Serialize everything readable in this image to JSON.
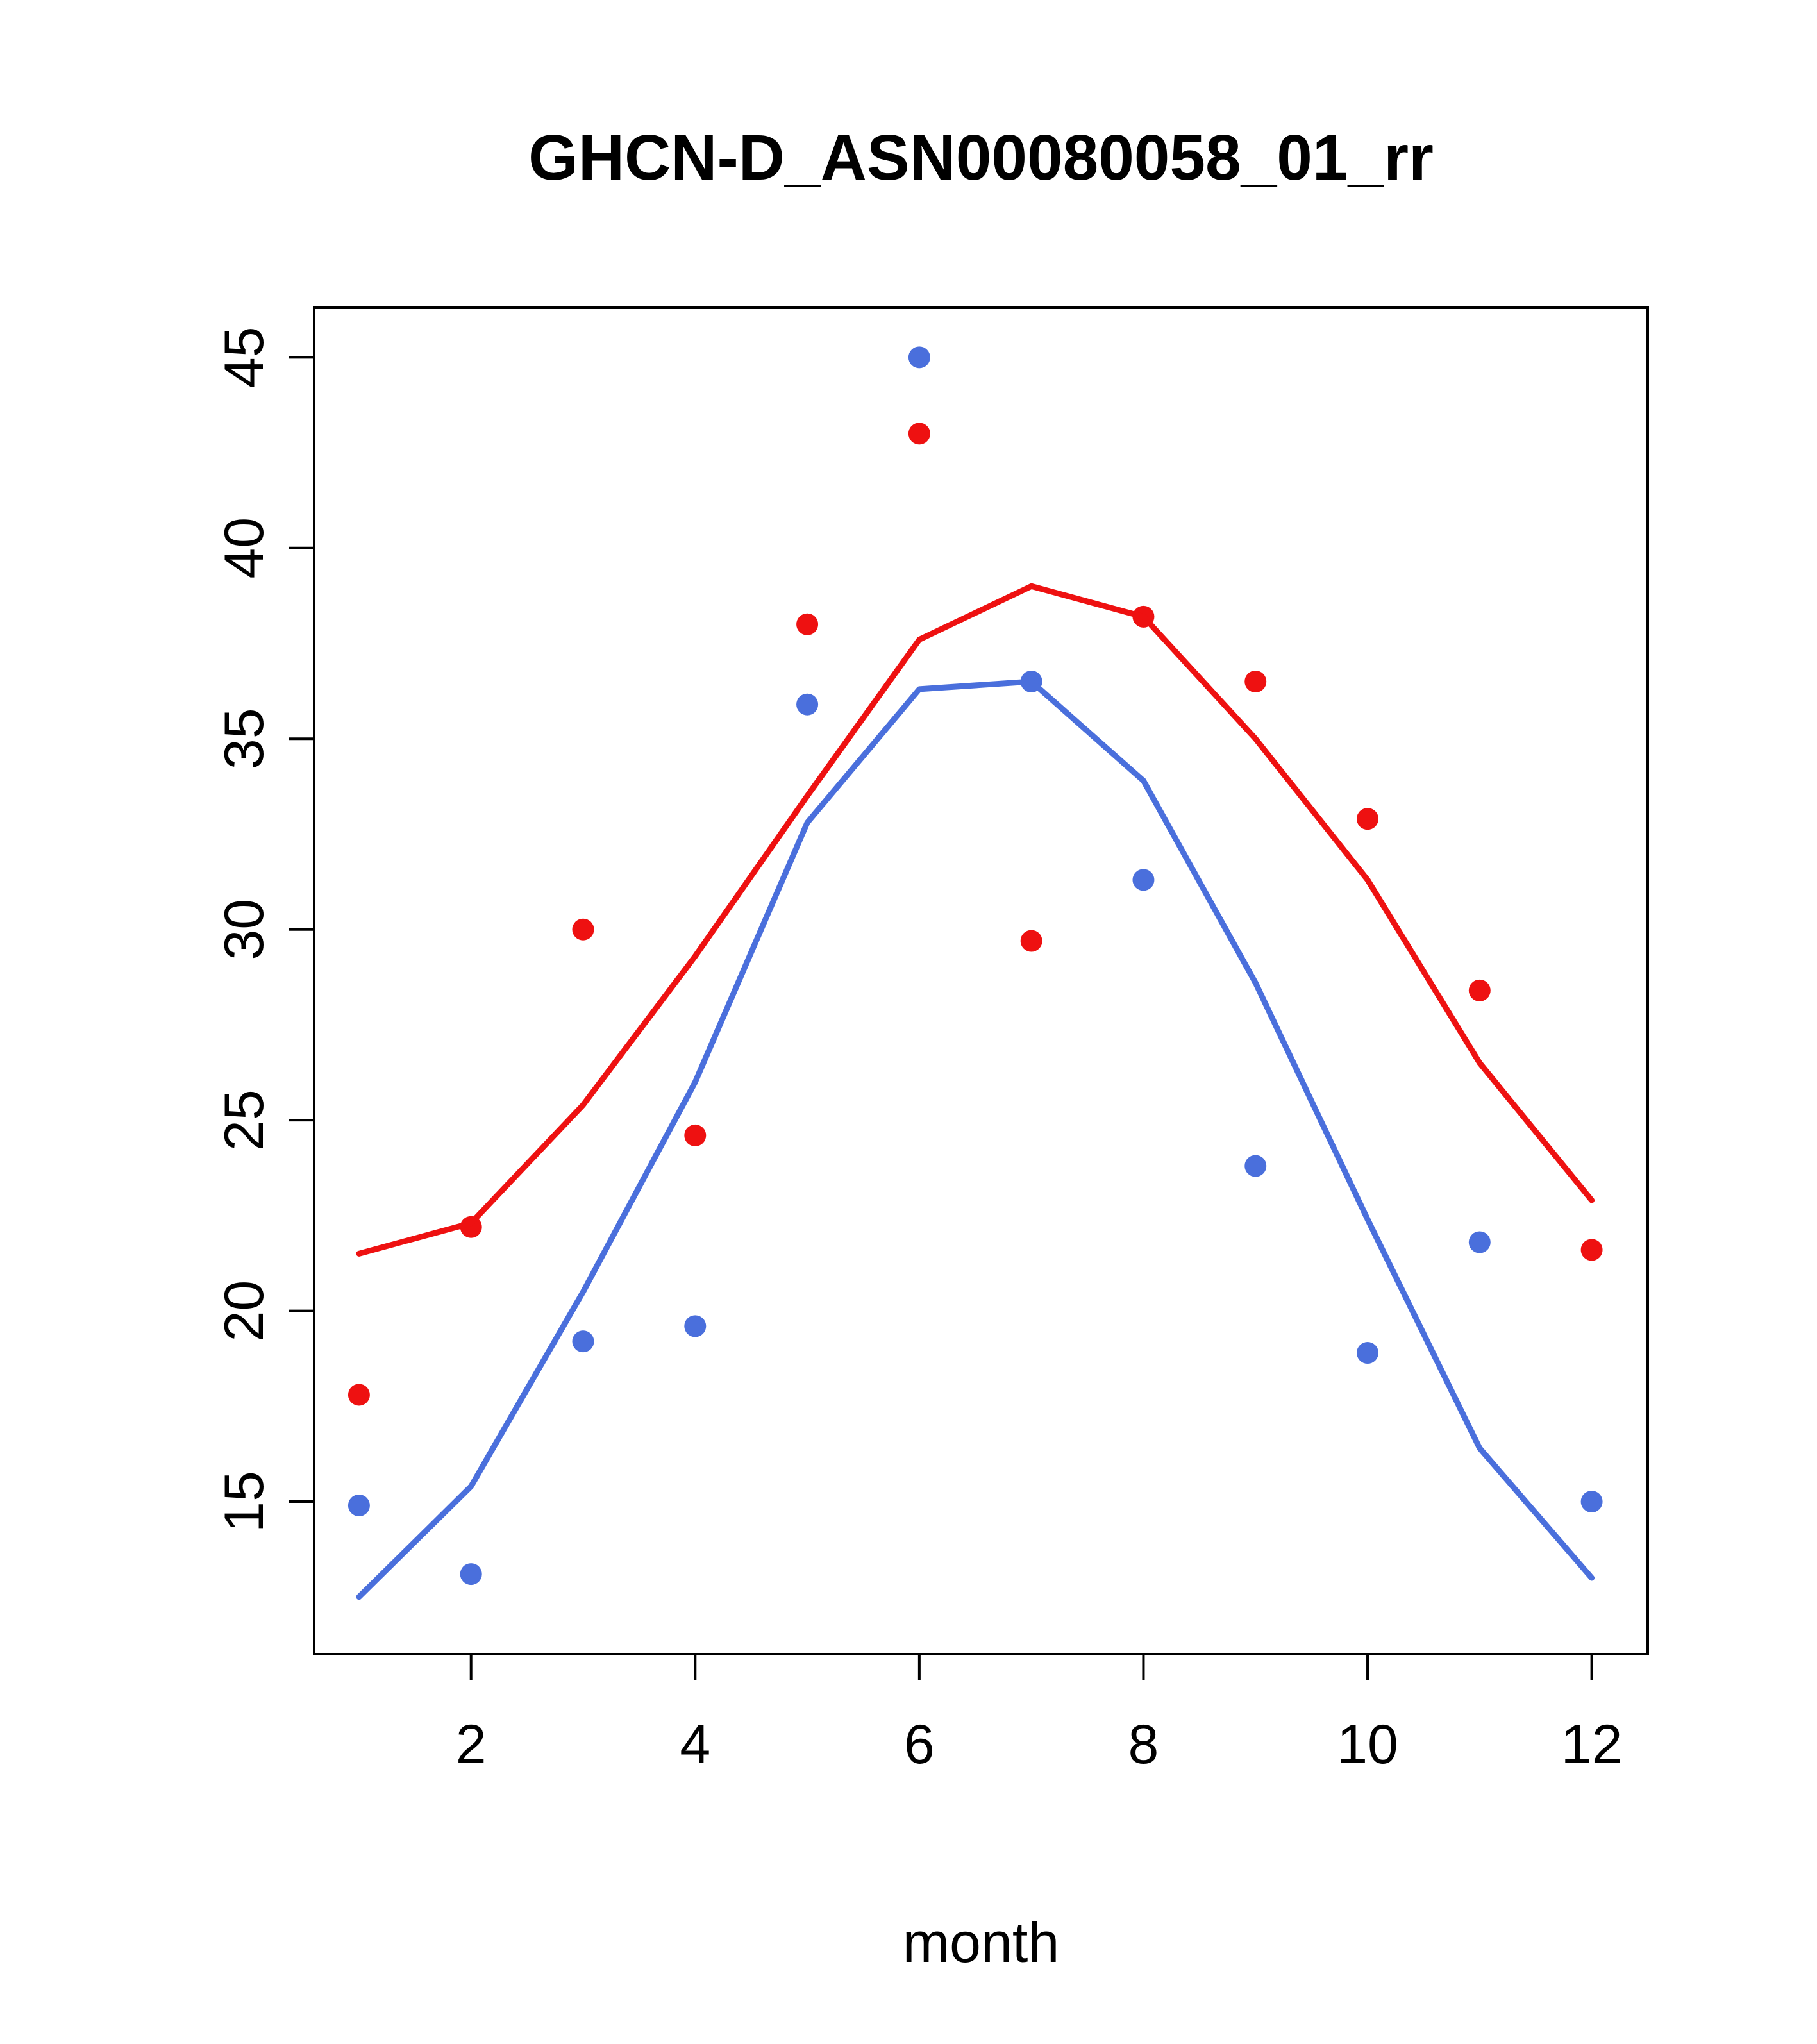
{
  "title": "GHCN-D_ASN00080058_01_rr",
  "chart_data": {
    "type": "scatter",
    "title": "GHCN-D_ASN00080058_01_rr",
    "xlabel": "month",
    "ylabel": "",
    "x": [
      1,
      2,
      3,
      4,
      5,
      6,
      7,
      8,
      9,
      10,
      11,
      12
    ],
    "xlim": [
      0.6,
      12.5
    ],
    "ylim": [
      11,
      46.3
    ],
    "x_ticks": [
      2,
      4,
      6,
      8,
      10,
      12
    ],
    "y_ticks": [
      15,
      20,
      25,
      30,
      35,
      40,
      45
    ],
    "grid": false,
    "legend": "none",
    "colors": {
      "red": "#ee1111",
      "blue": "#4a6fdc"
    },
    "series": [
      {
        "name": "red-points",
        "kind": "points",
        "color": "#ee1111",
        "values": [
          17.8,
          22.2,
          30.0,
          24.6,
          38.0,
          43.0,
          29.7,
          38.2,
          36.5,
          32.9,
          28.4,
          21.6
        ]
      },
      {
        "name": "blue-points",
        "kind": "points",
        "color": "#4a6fdc",
        "values": [
          14.9,
          13.1,
          19.2,
          19.6,
          35.9,
          45.0,
          36.5,
          31.3,
          23.8,
          18.9,
          21.8,
          15.0
        ]
      },
      {
        "name": "red-line",
        "kind": "line",
        "color": "#ee1111",
        "values": [
          21.5,
          22.3,
          25.4,
          29.3,
          33.5,
          37.6,
          39.0,
          38.2,
          35.0,
          31.3,
          26.5,
          22.9
        ]
      },
      {
        "name": "blue-line",
        "kind": "line",
        "color": "#4a6fdc",
        "values": [
          12.5,
          15.4,
          20.5,
          26.0,
          32.8,
          36.3,
          36.5,
          33.9,
          28.6,
          22.4,
          16.4,
          13.0
        ]
      }
    ]
  }
}
